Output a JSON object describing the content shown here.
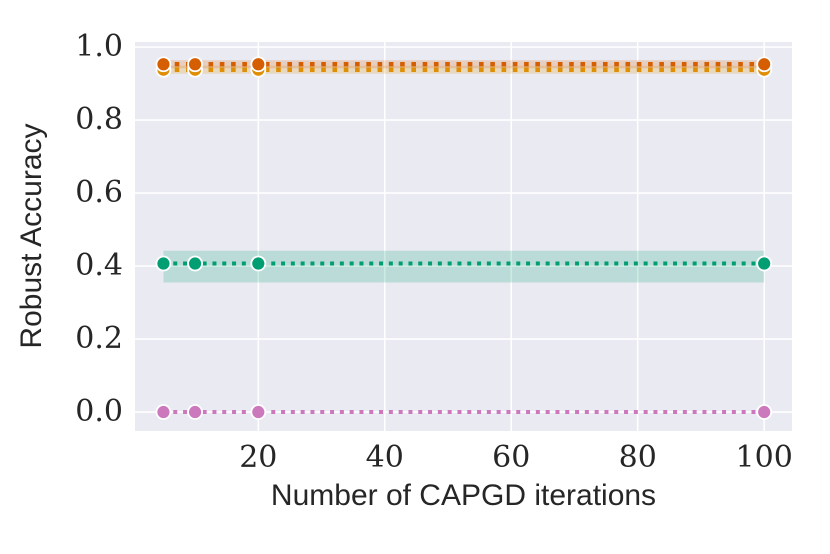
{
  "chart_data": {
    "type": "line",
    "title": "",
    "xlabel": "Number of CAPGD iterations",
    "ylabel": "Robust Accuracy",
    "x": [
      5,
      10,
      20,
      100
    ],
    "marker_x": [
      5,
      10,
      20,
      100
    ],
    "series": [
      {
        "name": "pink-series",
        "color": "#CC78BC",
        "line_width": 4.0,
        "values": [
          0.0,
          0.0,
          0.0,
          0.0
        ],
        "band": null
      },
      {
        "name": "green-series",
        "color": "#029E73",
        "line_width": 4.0,
        "values": [
          0.407,
          0.407,
          0.407,
          0.407
        ],
        "band": [
          0.355,
          0.442
        ]
      },
      {
        "name": "orange-series",
        "color": "#DE8F05",
        "line_width": 4.6,
        "values": [
          0.938,
          0.938,
          0.938,
          0.938
        ],
        "band": [
          0.927,
          0.949
        ]
      },
      {
        "name": "vermillion-series",
        "color": "#D55E00",
        "line_width": 4.6,
        "values": [
          0.953,
          0.953,
          0.953,
          0.953
        ],
        "band": [
          0.942,
          0.964
        ]
      }
    ],
    "xticks": [
      20,
      40,
      60,
      80,
      100
    ],
    "xticklabels": [
      "20",
      "40",
      "60",
      "80",
      "100"
    ],
    "yticks": [
      0.0,
      0.2,
      0.4,
      0.6,
      0.8,
      1.0
    ],
    "yticklabels": [
      "0.0",
      "0.2",
      "0.4",
      "0.6",
      "0.8",
      "1.0"
    ],
    "xlim": [
      0.5,
      104.4
    ],
    "ylim": [
      -0.052,
      1.014
    ],
    "grid": true,
    "legend": "none",
    "style": {
      "axes_background": "#EAEAF2",
      "grid_color": "#FFFFFF",
      "text_color": "#262626",
      "band_opacity": 0.2,
      "marker_edge_color": "#FFFFFF",
      "marker_radius": 7
    }
  }
}
